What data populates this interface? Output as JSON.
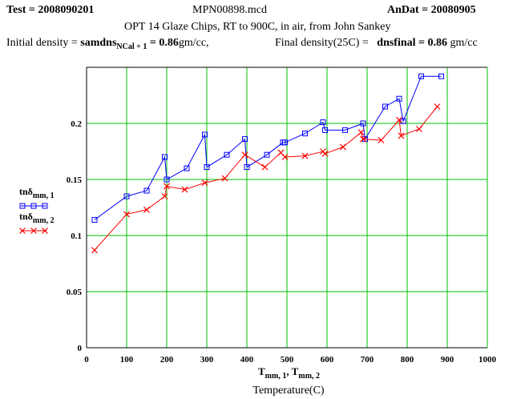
{
  "header": {
    "test_label": "Test",
    "test_value": "= 2008090201",
    "file_name": "MPN00898.mcd",
    "andat_label": "AnDat",
    "andat_value": "= 20080905",
    "description": "OPT 14 Glaze Chips, RT to 900C, in air,  from John Sankey",
    "initial_label": "Initial density =",
    "initial_var": "samdns",
    "initial_sub": "NCal + 1",
    "initial_value": "= 0.86",
    "initial_unit": "gm/cc,",
    "final_label": "Final density(25C) =",
    "final_var": "dnsfinal",
    "final_value": "= 0.86",
    "final_unit": "gm/cc"
  },
  "colors": {
    "grid": "#00c000",
    "series1": "#0000ff",
    "series2": "#ff0000",
    "axis": "#000000"
  },
  "chart_data": {
    "type": "line",
    "xlim": [
      0,
      1000
    ],
    "ylim": [
      0,
      0.25
    ],
    "x_ticks": [
      0,
      100,
      200,
      300,
      400,
      500,
      600,
      700,
      800,
      900,
      1000
    ],
    "y_ticks": [
      0,
      0.05,
      0.1,
      0.15,
      0.2
    ],
    "y_tick_labels": [
      "0",
      "0.05",
      "0.1",
      "0.15",
      "0.2"
    ],
    "grid": true,
    "xlabel_base": "T",
    "xlabel_sub1": "mm, 1",
    "xlabel_sep": ", T",
    "xlabel_sub2": "mm, 2",
    "xlabel_caption": "Temperature(C)",
    "series": [
      {
        "label_base": "tnδ",
        "label_sub": "mm, 1",
        "marker": "square",
        "x": [
          20,
          100,
          150,
          195,
          200,
          250,
          295,
          300,
          350,
          395,
          400,
          450,
          490,
          495,
          545,
          590,
          595,
          645,
          690,
          695,
          745,
          780,
          790,
          835,
          885
        ],
        "y": [
          0.114,
          0.135,
          0.14,
          0.17,
          0.15,
          0.16,
          0.19,
          0.161,
          0.172,
          0.186,
          0.161,
          0.172,
          0.183,
          0.183,
          0.191,
          0.201,
          0.194,
          0.194,
          0.2,
          0.186,
          0.215,
          0.222,
          0.202,
          0.242,
          0.242
        ]
      },
      {
        "label_base": "tnδ",
        "label_sub": "mm, 2",
        "marker": "x",
        "x": [
          20,
          100,
          150,
          195,
          200,
          245,
          295,
          345,
          395,
          445,
          485,
          495,
          545,
          590,
          595,
          640,
          685,
          690,
          735,
          780,
          785,
          830,
          875
        ],
        "y": [
          0.087,
          0.119,
          0.123,
          0.135,
          0.144,
          0.141,
          0.147,
          0.151,
          0.172,
          0.161,
          0.174,
          0.17,
          0.171,
          0.175,
          0.173,
          0.179,
          0.192,
          0.186,
          0.185,
          0.203,
          0.189,
          0.195,
          0.215
        ]
      }
    ]
  }
}
